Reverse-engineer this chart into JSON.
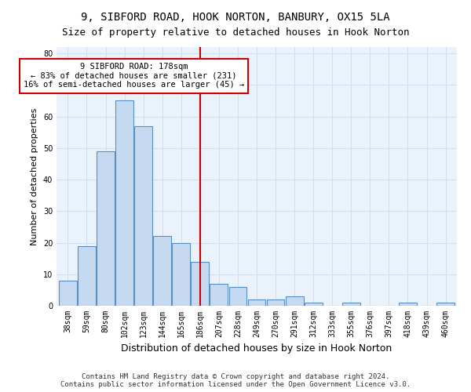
{
  "title1": "9, SIBFORD ROAD, HOOK NORTON, BANBURY, OX15 5LA",
  "title2": "Size of property relative to detached houses in Hook Norton",
  "xlabel": "Distribution of detached houses by size in Hook Norton",
  "ylabel": "Number of detached properties",
  "categories": [
    "38sqm",
    "59sqm",
    "80sqm",
    "102sqm",
    "123sqm",
    "144sqm",
    "165sqm",
    "186sqm",
    "207sqm",
    "228sqm",
    "249sqm",
    "270sqm",
    "291sqm",
    "312sqm",
    "333sqm",
    "355sqm",
    "376sqm",
    "397sqm",
    "418sqm",
    "439sqm",
    "460sqm"
  ],
  "values": [
    8,
    19,
    49,
    65,
    57,
    22,
    20,
    14,
    7,
    6,
    2,
    2,
    3,
    1,
    0,
    1,
    0,
    0,
    1,
    0,
    1
  ],
  "bar_color": "#c5d9f0",
  "bar_edge_color": "#5a8fc2",
  "vline_x": 7,
  "vline_color": "#cc0000",
  "annotation_text": "9 SIBFORD ROAD: 178sqm\n← 83% of detached houses are smaller (231)\n16% of semi-detached houses are larger (45) →",
  "annotation_box_color": "#ffffff",
  "annotation_box_edge": "#cc0000",
  "ylim": [
    0,
    82
  ],
  "yticks": [
    0,
    10,
    20,
    30,
    40,
    50,
    60,
    70,
    80
  ],
  "grid_color": "#d0e0f0",
  "background_color": "#eaf2fb",
  "footnote": "Contains HM Land Registry data © Crown copyright and database right 2024.\nContains public sector information licensed under the Open Government Licence v3.0.",
  "title1_fontsize": 10,
  "title2_fontsize": 9,
  "xlabel_fontsize": 9,
  "ylabel_fontsize": 8,
  "tick_fontsize": 7,
  "annotation_fontsize": 7.5,
  "footnote_fontsize": 6.5
}
